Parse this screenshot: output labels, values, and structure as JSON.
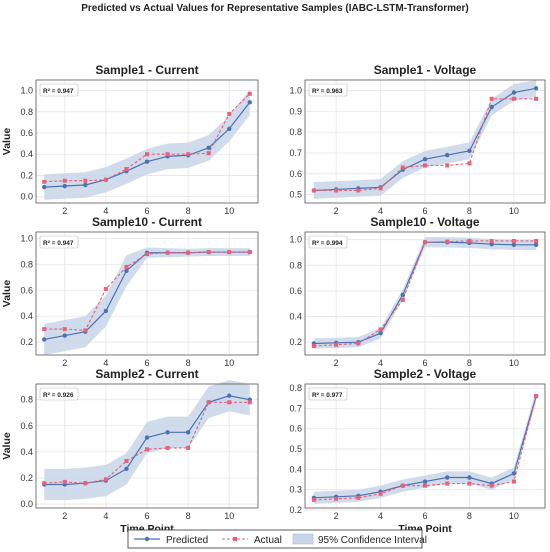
{
  "figure": {
    "title": "Predicted vs Actual Values for Representative Samples (IABC-LSTM-Transformer)",
    "xlabel": "Time Point",
    "ylabel": "Value"
  },
  "legend": {
    "predicted": "Predicted",
    "actual": "Actual",
    "ci": "95% Confidence Interval"
  },
  "colors": {
    "predicted": "#4c72b0",
    "actual": "#e8607a",
    "ci": "#c8d6e7",
    "grid": "#e5e5e5"
  },
  "chart_data": [
    {
      "type": "line",
      "title": "Sample1 - Current",
      "r2": "R² = 0.947",
      "xlabel": "",
      "ylabel": "Value",
      "x": [
        1,
        2,
        3,
        4,
        5,
        6,
        7,
        8,
        9,
        10,
        11
      ],
      "xticks": [
        2,
        4,
        6,
        8,
        10
      ],
      "yticks": [
        0.0,
        0.2,
        0.4,
        0.6,
        0.8,
        1.0
      ],
      "yticklabels": [
        "0.0",
        "0.2",
        "0.4",
        "0.6",
        "0.8",
        "1.0"
      ],
      "xlim": [
        0.6,
        11.4
      ],
      "ylim": [
        -0.06,
        1.1
      ],
      "series": [
        {
          "name": "Predicted",
          "values": [
            0.09,
            0.1,
            0.11,
            0.16,
            0.24,
            0.33,
            0.38,
            0.39,
            0.46,
            0.64,
            0.89
          ]
        },
        {
          "name": "Actual",
          "values": [
            0.14,
            0.15,
            0.15,
            0.16,
            0.26,
            0.4,
            0.4,
            0.4,
            0.41,
            0.78,
            0.97
          ]
        }
      ],
      "ci_lower": [
        -0.03,
        -0.02,
        -0.01,
        0.04,
        0.12,
        0.21,
        0.26,
        0.27,
        0.34,
        0.52,
        0.77
      ],
      "ci_upper": [
        0.21,
        0.22,
        0.23,
        0.28,
        0.36,
        0.45,
        0.5,
        0.51,
        0.58,
        0.76,
        1.01
      ]
    },
    {
      "type": "line",
      "title": "Sample1 - Voltage",
      "r2": "R² = 0.963",
      "xlabel": "",
      "ylabel": "",
      "x": [
        1,
        2,
        3,
        4,
        5,
        6,
        7,
        8,
        9,
        10,
        11
      ],
      "xticks": [
        2,
        4,
        6,
        8,
        10
      ],
      "yticks": [
        0.5,
        0.6,
        0.7,
        0.8,
        0.9,
        1.0
      ],
      "yticklabels": [
        "0.5",
        "0.6",
        "0.7",
        "0.8",
        "0.9",
        "1.0"
      ],
      "xlim": [
        0.6,
        11.4
      ],
      "ylim": [
        0.46,
        1.05
      ],
      "series": [
        {
          "name": "Predicted",
          "values": [
            0.52,
            0.525,
            0.53,
            0.535,
            0.62,
            0.67,
            0.69,
            0.71,
            0.92,
            0.99,
            1.01
          ]
        },
        {
          "name": "Actual",
          "values": [
            0.52,
            0.52,
            0.52,
            0.53,
            0.63,
            0.64,
            0.64,
            0.65,
            0.96,
            0.96,
            0.96
          ]
        }
      ],
      "ci_lower": [
        0.48,
        0.485,
        0.49,
        0.495,
        0.58,
        0.63,
        0.65,
        0.67,
        0.88,
        0.95,
        0.97
      ],
      "ci_upper": [
        0.56,
        0.565,
        0.57,
        0.575,
        0.66,
        0.71,
        0.73,
        0.75,
        0.96,
        1.03,
        1.05
      ]
    },
    {
      "type": "line",
      "title": "Sample10 - Current",
      "r2": "R² = 0.947",
      "xlabel": "",
      "ylabel": "Value",
      "x": [
        1,
        2,
        3,
        4,
        5,
        6,
        7,
        8,
        9,
        10,
        11
      ],
      "xticks": [
        2,
        4,
        6,
        8,
        10
      ],
      "yticks": [
        0.2,
        0.4,
        0.6,
        0.8,
        1.0
      ],
      "yticklabels": [
        "0.2",
        "0.4",
        "0.6",
        "0.8",
        "1.0"
      ],
      "xlim": [
        0.6,
        11.4
      ],
      "ylim": [
        0.1,
        1.05
      ],
      "series": [
        {
          "name": "Predicted",
          "values": [
            0.22,
            0.25,
            0.28,
            0.44,
            0.75,
            0.89,
            0.89,
            0.89,
            0.895,
            0.895,
            0.895
          ]
        },
        {
          "name": "Actual",
          "values": [
            0.3,
            0.3,
            0.29,
            0.61,
            0.78,
            0.88,
            0.89,
            0.89,
            0.895,
            0.895,
            0.895
          ]
        }
      ],
      "ci_lower": [
        0.1,
        0.13,
        0.16,
        0.32,
        0.63,
        0.85,
        0.855,
        0.86,
        0.865,
        0.865,
        0.865
      ],
      "ci_upper": [
        0.34,
        0.37,
        0.4,
        0.56,
        0.87,
        0.93,
        0.925,
        0.92,
        0.925,
        0.925,
        0.925
      ]
    },
    {
      "type": "line",
      "title": "Sample10 - Voltage",
      "r2": "R² = 0.994",
      "xlabel": "",
      "ylabel": "",
      "x": [
        1,
        2,
        3,
        4,
        5,
        6,
        7,
        8,
        9,
        10,
        11
      ],
      "xticks": [
        2,
        4,
        6,
        8,
        10
      ],
      "yticks": [
        0.2,
        0.4,
        0.6,
        0.8,
        1.0
      ],
      "yticklabels": [
        "0.2",
        "0.4",
        "0.6",
        "0.8",
        "1.0"
      ],
      "xlim": [
        0.6,
        11.4
      ],
      "ylim": [
        0.1,
        1.06
      ],
      "series": [
        {
          "name": "Predicted",
          "values": [
            0.19,
            0.195,
            0.2,
            0.27,
            0.57,
            0.98,
            0.98,
            0.975,
            0.965,
            0.96,
            0.96
          ]
        },
        {
          "name": "Actual",
          "values": [
            0.17,
            0.18,
            0.19,
            0.3,
            0.53,
            0.98,
            0.985,
            0.99,
            0.99,
            0.99,
            0.99
          ]
        }
      ],
      "ci_lower": [
        0.15,
        0.155,
        0.16,
        0.23,
        0.53,
        0.94,
        0.94,
        0.935,
        0.925,
        0.92,
        0.92
      ],
      "ci_upper": [
        0.23,
        0.235,
        0.24,
        0.31,
        0.61,
        1.02,
        1.02,
        1.015,
        1.005,
        1.0,
        1.0
      ]
    },
    {
      "type": "line",
      "title": "Sample2 - Current",
      "r2": "R² = 0.926",
      "xlabel": "Time Point",
      "ylabel": "Value",
      "x": [
        1,
        2,
        3,
        4,
        5,
        6,
        7,
        8,
        9,
        10,
        11
      ],
      "xticks": [
        2,
        4,
        6,
        8,
        10
      ],
      "yticks": [
        0.0,
        0.2,
        0.4,
        0.6,
        0.8
      ],
      "yticklabels": [
        "0.0",
        "0.2",
        "0.4",
        "0.6",
        "0.8"
      ],
      "xlim": [
        0.6,
        11.4
      ],
      "ylim": [
        -0.03,
        0.92
      ],
      "series": [
        {
          "name": "Predicted",
          "values": [
            0.15,
            0.15,
            0.16,
            0.18,
            0.27,
            0.51,
            0.55,
            0.55,
            0.78,
            0.83,
            0.8
          ]
        },
        {
          "name": "Actual",
          "values": [
            0.16,
            0.17,
            0.16,
            0.19,
            0.33,
            0.42,
            0.43,
            0.43,
            0.78,
            0.78,
            0.78
          ]
        }
      ],
      "ci_lower": [
        0.03,
        0.03,
        0.04,
        0.06,
        0.15,
        0.39,
        0.43,
        0.43,
        0.66,
        0.71,
        0.68
      ],
      "ci_upper": [
        0.27,
        0.27,
        0.28,
        0.3,
        0.39,
        0.63,
        0.67,
        0.67,
        0.9,
        0.95,
        0.92
      ]
    },
    {
      "type": "line",
      "title": "Sample2 - Voltage",
      "r2": "R² = 0.977",
      "xlabel": "Time Point",
      "ylabel": "",
      "x": [
        1,
        2,
        3,
        4,
        5,
        6,
        7,
        8,
        9,
        10,
        11
      ],
      "xticks": [
        2,
        4,
        6,
        8,
        10
      ],
      "yticks": [
        0.2,
        0.3,
        0.4,
        0.5,
        0.6,
        0.7,
        0.8
      ],
      "yticklabels": [
        "0.2",
        "0.3",
        "0.4",
        "0.5",
        "0.6",
        "0.7",
        "0.8"
      ],
      "xlim": [
        0.6,
        11.4
      ],
      "ylim": [
        0.21,
        0.82
      ],
      "series": [
        {
          "name": "Predicted",
          "values": [
            0.26,
            0.265,
            0.27,
            0.29,
            0.32,
            0.34,
            0.36,
            0.36,
            0.33,
            0.38,
            0.76
          ]
        },
        {
          "name": "Actual",
          "values": [
            0.25,
            0.255,
            0.26,
            0.28,
            0.32,
            0.32,
            0.33,
            0.33,
            0.32,
            0.34,
            0.76
          ]
        }
      ],
      "ci_lower": [
        0.23,
        0.235,
        0.24,
        0.26,
        0.29,
        0.31,
        0.33,
        0.33,
        0.3,
        0.35,
        0.73
      ],
      "ci_upper": [
        0.29,
        0.295,
        0.3,
        0.32,
        0.35,
        0.37,
        0.39,
        0.39,
        0.36,
        0.41,
        0.79
      ]
    }
  ]
}
